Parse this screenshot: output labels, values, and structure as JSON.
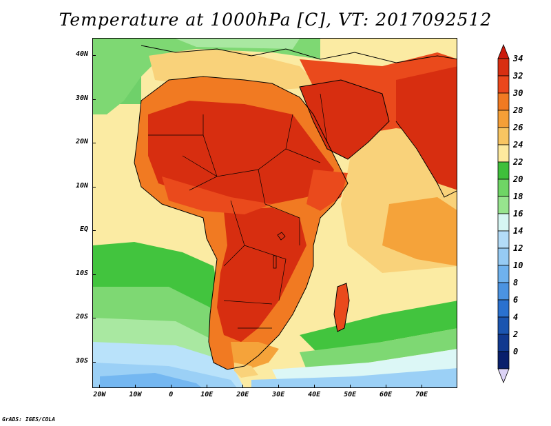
{
  "title": "Temperature at 1000hPa [C], VT: 2017092512",
  "footer": "GrADS: IGES/COLA",
  "map": {
    "lon_range": [
      -22,
      80
    ],
    "lat_range": [
      -36,
      44
    ],
    "lat_ticks": [
      {
        "label": "40N",
        "lat": 40
      },
      {
        "label": "30N",
        "lat": 30
      },
      {
        "label": "20N",
        "lat": 20
      },
      {
        "label": "10N",
        "lat": 10
      },
      {
        "label": "EQ",
        "lat": 0
      },
      {
        "label": "10S",
        "lat": -10
      },
      {
        "label": "20S",
        "lat": -20
      },
      {
        "label": "30S",
        "lat": -30
      }
    ],
    "lon_ticks": [
      {
        "label": "20W",
        "lon": -20
      },
      {
        "label": "10W",
        "lon": -10
      },
      {
        "label": "0",
        "lon": 0
      },
      {
        "label": "10E",
        "lon": 10
      },
      {
        "label": "20E",
        "lon": 20
      },
      {
        "label": "30E",
        "lon": 30
      },
      {
        "label": "40E",
        "lon": 40
      },
      {
        "label": "50E",
        "lon": 50
      },
      {
        "label": "60E",
        "lon": 60
      },
      {
        "label": "70E",
        "lon": 70
      }
    ],
    "colors": {
      "hot_34": "#d72e10",
      "c32": "#ea4a1c",
      "c30": "#f17a22",
      "c28": "#f5a33a",
      "c26": "#f9d27a",
      "c24": "#fbeba3",
      "c22": "#42c43e",
      "c20": "#7ed873",
      "c18": "#a9e8a1",
      "c16": "#dcf7f6",
      "c14": "#b9e2fa",
      "c12": "#9bd0f6",
      "c10": "#74b7f1",
      "c8": "#4e98e5",
      "c6": "#2d74d3",
      "c4": "#1d58b5",
      "c2": "#123c95",
      "c0": "#0a2170"
    }
  },
  "colorbar": {
    "labels": [
      "34",
      "32",
      "30",
      "28",
      "26",
      "24",
      "22",
      "20",
      "18",
      "16",
      "14",
      "12",
      "10",
      "8",
      "6",
      "4",
      "2",
      "0"
    ],
    "colors": [
      "#d82f12",
      "#eb471c",
      "#f17a22",
      "#f59f37",
      "#f8c562",
      "#fde99e",
      "#3fbf3b",
      "#6fd565",
      "#97e48e",
      "#d6f6f3",
      "#b3dcf8",
      "#96cbf4",
      "#6fb2ee",
      "#4b93e1",
      "#2a71cf",
      "#1b55b0",
      "#11398f",
      "#091f6c"
    ],
    "top_arrow_color": "#cc1a0c",
    "bottom_arrow_color": "#dcd3f6"
  }
}
